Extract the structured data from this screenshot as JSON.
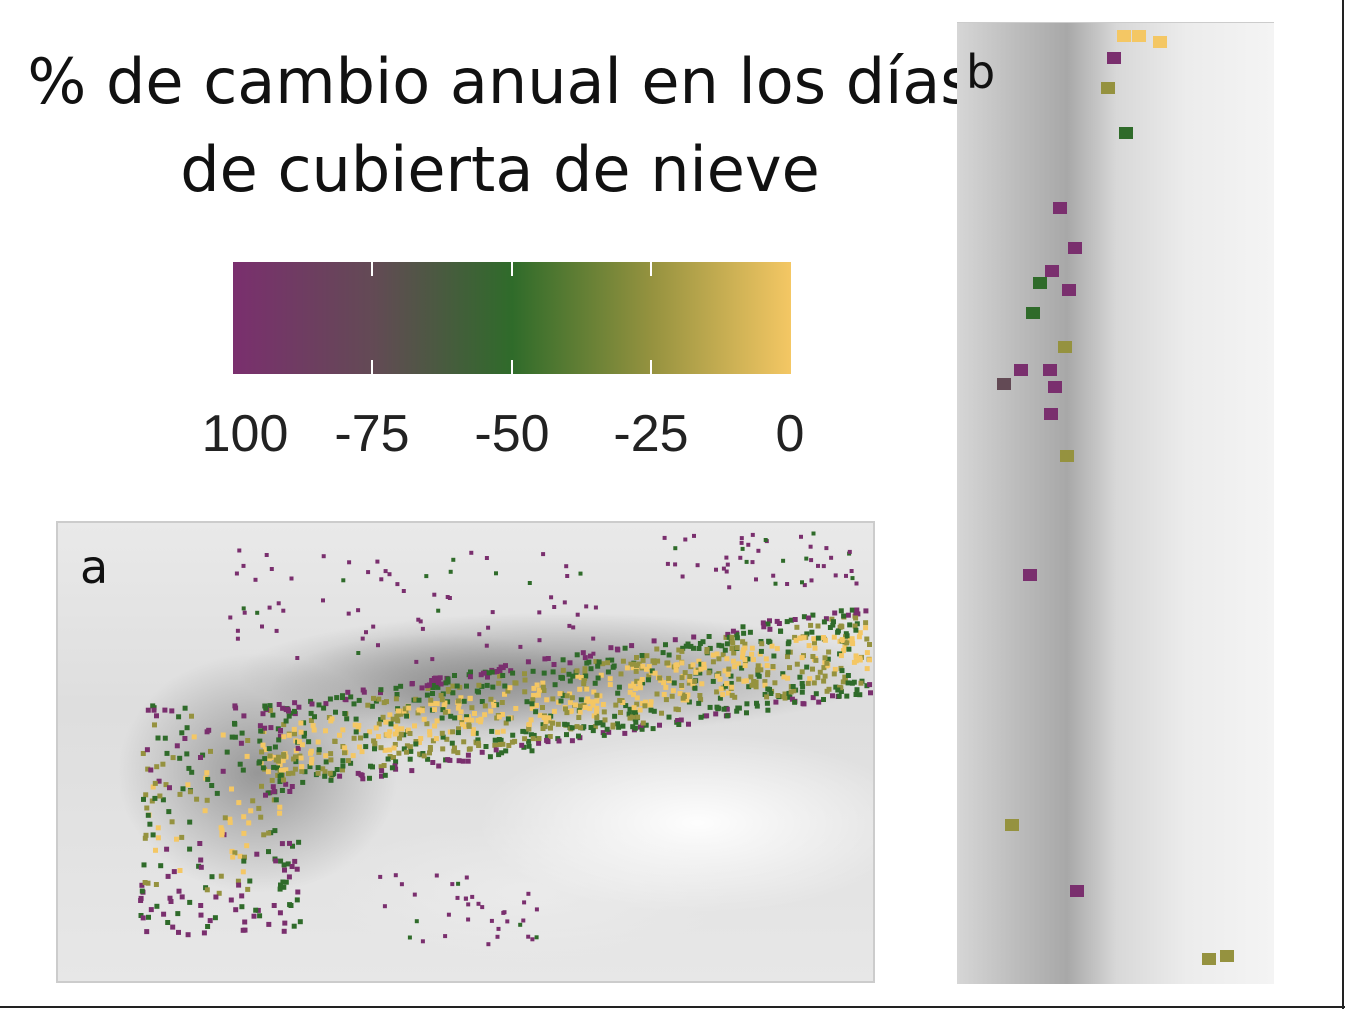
{
  "title": {
    "line1": "% de cambio anual en los días",
    "line2": "de cubierta de nieve"
  },
  "legend": {
    "ticks": [
      "100",
      "-75",
      "-50",
      "-25",
      "0"
    ],
    "colors": [
      "#7a2f6e",
      "#634a55",
      "#2f6b2a",
      "#95923f",
      "#f4c764"
    ]
  },
  "maps": {
    "a": {
      "label": "a"
    },
    "b": {
      "label": "b"
    }
  }
}
